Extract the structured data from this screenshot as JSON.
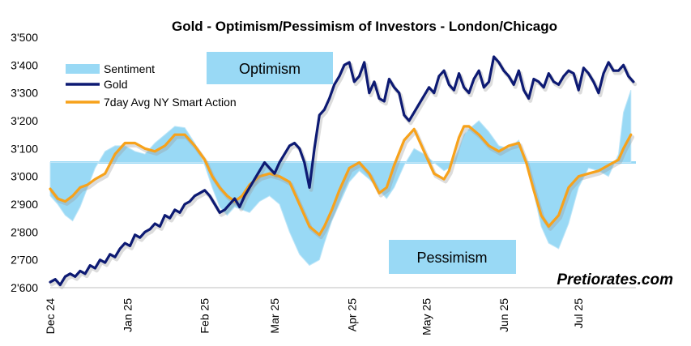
{
  "chart_data": {
    "type": "line",
    "title": "Gold - Optimism/Pessimism of Investors - London/Chicago",
    "ylim": [
      2600,
      3500
    ],
    "ytick_step": 100,
    "neutral_level": 3050,
    "y_ticks": [
      "2'600",
      "2'700",
      "2'800",
      "2'900",
      "3'000",
      "3'100",
      "3'200",
      "3'300",
      "3'400",
      "3'500"
    ],
    "x_ticks": [
      {
        "label": "Dec 24",
        "day": 0
      },
      {
        "label": "Jan 25",
        "day": 31
      },
      {
        "label": "Feb 25",
        "day": 62
      },
      {
        "label": "Mar 25",
        "day": 90
      },
      {
        "label": "Apr 25",
        "day": 121
      },
      {
        "label": "May 25",
        "day": 151
      },
      {
        "label": "Jun 25",
        "day": 182
      },
      {
        "label": "Jul 25",
        "day": 212
      }
    ],
    "x_range": [
      0,
      235
    ],
    "legend": [
      {
        "name": "Sentiment",
        "color": "#99d9f5",
        "type": "area"
      },
      {
        "name": "Gold",
        "color": "#0d1a73",
        "type": "line"
      },
      {
        "name": "7day Avg NY Smart Action",
        "color": "#f7a21b",
        "type": "line"
      }
    ],
    "annotations": {
      "optimism": "Optimism",
      "pessimism": "Pessimism",
      "brand": "Pretiorates.com"
    },
    "series": [
      {
        "name": "Sentiment",
        "x": [
          0,
          3,
          6,
          9,
          12,
          15,
          18,
          22,
          26,
          30,
          34,
          38,
          42,
          46,
          50,
          54,
          58,
          62,
          65,
          68,
          71,
          74,
          77,
          80,
          84,
          88,
          92,
          96,
          100,
          104,
          108,
          110,
          113,
          116,
          120,
          124,
          128,
          132,
          135,
          138,
          142,
          146,
          150,
          154,
          158,
          160,
          162,
          164,
          166,
          168,
          172,
          176,
          180,
          184,
          188,
          191,
          194,
          197,
          200,
          204,
          208,
          212,
          216,
          220,
          224,
          228,
          230,
          233
        ],
        "values": [
          2930,
          2900,
          2860,
          2840,
          2890,
          2960,
          3030,
          3090,
          3110,
          3110,
          3090,
          3080,
          3120,
          3150,
          3180,
          3175,
          3120,
          3040,
          2960,
          2890,
          2860,
          2890,
          2880,
          2870,
          2910,
          2930,
          2900,
          2800,
          2720,
          2680,
          2700,
          2760,
          2840,
          2900,
          2980,
          3020,
          2990,
          2950,
          2920,
          2960,
          3040,
          3100,
          3080,
          3050,
          3020,
          3030,
          3060,
          3100,
          3150,
          3170,
          3200,
          3160,
          3110,
          3100,
          3130,
          3050,
          2940,
          2820,
          2760,
          2740,
          2830,
          2960,
          3030,
          3020,
          3000,
          3080,
          3230,
          3310
        ]
      },
      {
        "name": "Gold",
        "x": [
          0,
          2,
          4,
          6,
          8,
          10,
          12,
          14,
          16,
          18,
          20,
          22,
          24,
          26,
          28,
          30,
          32,
          34,
          36,
          38,
          40,
          42,
          44,
          46,
          48,
          50,
          52,
          54,
          56,
          58,
          60,
          62,
          64,
          66,
          68,
          70,
          72,
          74,
          76,
          78,
          80,
          82,
          84,
          86,
          88,
          90,
          92,
          94,
          96,
          98,
          100,
          102,
          104,
          106,
          108,
          110,
          112,
          114,
          116,
          118,
          120,
          122,
          124,
          126,
          128,
          130,
          132,
          134,
          136,
          138,
          140,
          142,
          144,
          146,
          148,
          150,
          152,
          154,
          156,
          158,
          160,
          162,
          164,
          166,
          168,
          170,
          172,
          174,
          176,
          178,
          180,
          182,
          184,
          186,
          188,
          190,
          192,
          194,
          196,
          198,
          200,
          202,
          204,
          206,
          208,
          210,
          212,
          214,
          216,
          218,
          220,
          222,
          224,
          226,
          228,
          230,
          232,
          234
        ],
        "values": [
          2620,
          2630,
          2610,
          2640,
          2650,
          2640,
          2660,
          2650,
          2680,
          2670,
          2700,
          2690,
          2720,
          2710,
          2740,
          2760,
          2750,
          2790,
          2780,
          2800,
          2810,
          2830,
          2820,
          2860,
          2850,
          2880,
          2870,
          2900,
          2910,
          2930,
          2940,
          2950,
          2930,
          2900,
          2870,
          2880,
          2900,
          2920,
          2890,
          2930,
          2960,
          2990,
          3020,
          3050,
          3030,
          3010,
          3050,
          3080,
          3110,
          3120,
          3100,
          3050,
          2960,
          3100,
          3220,
          3240,
          3280,
          3330,
          3360,
          3400,
          3410,
          3340,
          3360,
          3410,
          3300,
          3340,
          3280,
          3270,
          3350,
          3320,
          3300,
          3220,
          3200,
          3230,
          3260,
          3290,
          3320,
          3300,
          3360,
          3380,
          3330,
          3310,
          3370,
          3320,
          3300,
          3350,
          3380,
          3320,
          3340,
          3430,
          3410,
          3380,
          3360,
          3330,
          3380,
          3310,
          3280,
          3350,
          3340,
          3320,
          3370,
          3340,
          3330,
          3360,
          3380,
          3370,
          3310,
          3390,
          3370,
          3340,
          3300,
          3370,
          3410,
          3380,
          3380,
          3400,
          3360,
          3340
        ]
      },
      {
        "name": "7day Avg NY Smart Action",
        "x": [
          0,
          3,
          6,
          9,
          12,
          15,
          18,
          22,
          26,
          30,
          34,
          38,
          42,
          46,
          50,
          54,
          58,
          62,
          65,
          68,
          71,
          74,
          77,
          80,
          84,
          88,
          92,
          96,
          100,
          104,
          108,
          110,
          113,
          116,
          120,
          124,
          128,
          132,
          135,
          138,
          142,
          146,
          150,
          154,
          158,
          160,
          162,
          164,
          166,
          168,
          172,
          176,
          180,
          184,
          188,
          191,
          194,
          197,
          200,
          204,
          208,
          212,
          216,
          220,
          224,
          228,
          230,
          233
        ],
        "values": [
          2955,
          2920,
          2910,
          2930,
          2960,
          2970,
          2990,
          3010,
          3080,
          3120,
          3120,
          3100,
          3090,
          3110,
          3150,
          3150,
          3110,
          3060,
          3000,
          2960,
          2930,
          2910,
          2930,
          2970,
          3000,
          3010,
          3000,
          2980,
          2900,
          2820,
          2790,
          2820,
          2880,
          2950,
          3030,
          3050,
          3010,
          2940,
          2960,
          3040,
          3130,
          3170,
          3090,
          3010,
          2990,
          3020,
          3080,
          3140,
          3180,
          3180,
          3150,
          3110,
          3090,
          3110,
          3120,
          3050,
          2950,
          2860,
          2820,
          2860,
          2960,
          3000,
          3010,
          3020,
          3040,
          3060,
          3100,
          3150
        ]
      }
    ]
  }
}
